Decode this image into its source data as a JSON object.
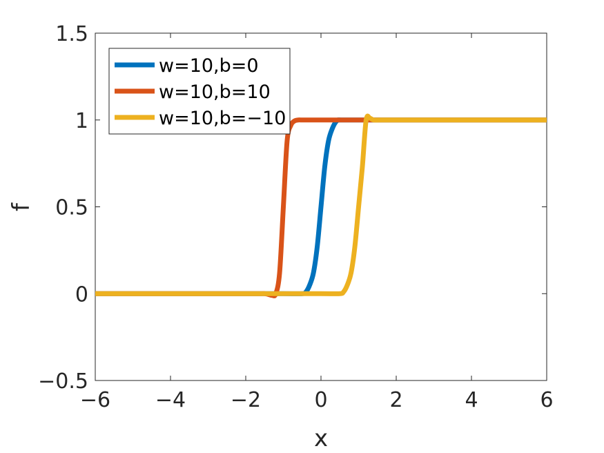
{
  "chart_data": {
    "type": "line",
    "title": "",
    "xlabel": "x",
    "ylabel": "f",
    "xlim": [
      -6,
      6
    ],
    "ylim": [
      -0.5,
      1.5
    ],
    "xticks": [
      -6,
      -4,
      -2,
      0,
      2,
      4,
      6
    ],
    "xtick_labels": [
      "−6",
      "−4",
      "−2",
      "0",
      "2",
      "4",
      "6"
    ],
    "yticks": [
      -0.5,
      0,
      0.5,
      1,
      1.5
    ],
    "ytick_labels": [
      "−0.5",
      "0",
      "0.5",
      "1",
      "1.5"
    ],
    "grid": false,
    "legend_position": "top-left",
    "series": [
      {
        "name": "w=10,b=0",
        "color": "#0072BD",
        "x": [
          -6,
          -2,
          -1,
          -0.5,
          -0.4,
          -0.3,
          -0.2,
          -0.1,
          0,
          0.1,
          0.2,
          0.3,
          0.4,
          0.5,
          1,
          6
        ],
        "y": [
          0,
          0,
          0,
          0,
          0.01,
          0.05,
          0.12,
          0.27,
          0.5,
          0.73,
          0.88,
          0.95,
          0.99,
          1.0,
          1.0,
          1.0
        ]
      },
      {
        "name": "w=10,b=10",
        "color": "#D95319",
        "x": [
          -6,
          -2,
          -1.5,
          -1.3,
          -1.2,
          -1.1,
          -1.0,
          -0.9,
          -0.8,
          -0.7,
          -0.6,
          -0.5,
          -0.3,
          0,
          1.2,
          6
        ],
        "y": [
          0,
          0,
          0,
          -0.01,
          0.0,
          0.12,
          0.5,
          0.88,
          0.97,
          0.995,
          1.0,
          1.0,
          1.0,
          1.0,
          1.0,
          1.0
        ]
      },
      {
        "name": "w=10,b=−10",
        "color": "#EDB120",
        "x": [
          -6,
          -1,
          0,
          0.5,
          0.6,
          0.7,
          0.8,
          0.9,
          1.0,
          1.1,
          1.2,
          1.3,
          1.4,
          1.6,
          2,
          6
        ],
        "y": [
          0,
          0,
          0,
          0,
          0.01,
          0.05,
          0.12,
          0.27,
          0.5,
          0.73,
          1.0,
          1.01,
          1.0,
          1.0,
          1.0,
          1.0
        ]
      }
    ]
  }
}
